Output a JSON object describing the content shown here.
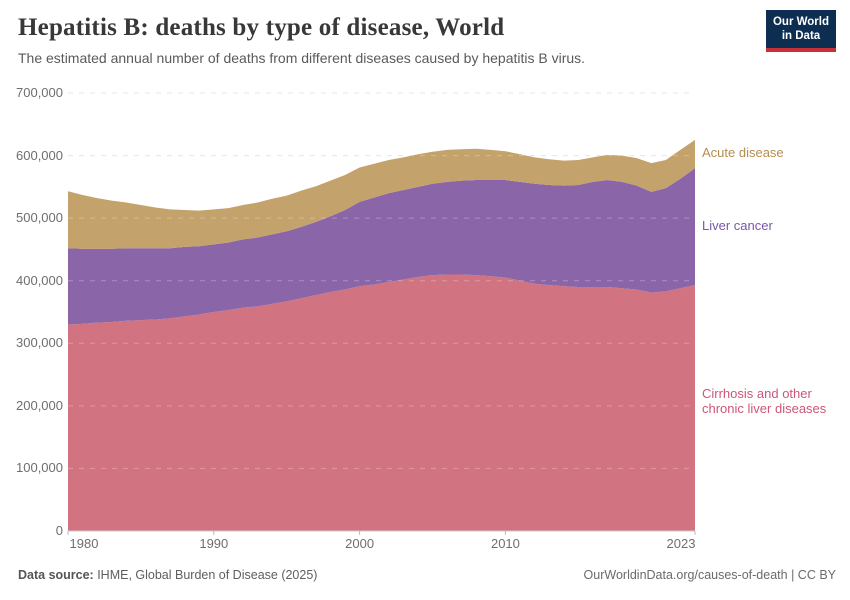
{
  "header": {
    "title": "Hepatitis B: deaths by type of disease, World",
    "subtitle": "The estimated annual number of deaths from different diseases caused by hepatitis B virus.",
    "logo": {
      "line1": "Our World",
      "line2": "in Data",
      "bg_color": "#0d2e51",
      "accent_color": "#c82f39"
    }
  },
  "chart_data": {
    "type": "area",
    "stacked": true,
    "title": "Hepatitis B: deaths by type of disease, World",
    "xlabel": "",
    "ylabel": "",
    "grid": "dashed-horizontal",
    "legend_position": "right-of-plot",
    "ylim": [
      0,
      700000
    ],
    "x": [
      1980,
      1981,
      1982,
      1983,
      1984,
      1985,
      1986,
      1987,
      1988,
      1989,
      1990,
      1991,
      1992,
      1993,
      1994,
      1995,
      1996,
      1997,
      1998,
      1999,
      2000,
      2001,
      2002,
      2003,
      2004,
      2005,
      2006,
      2007,
      2008,
      2009,
      2010,
      2011,
      2012,
      2013,
      2014,
      2015,
      2016,
      2017,
      2018,
      2019,
      2020,
      2021,
      2022,
      2023
    ],
    "x_ticks": [
      {
        "v": 1980,
        "label": "1980"
      },
      {
        "v": 1990,
        "label": "1990"
      },
      {
        "v": 2000,
        "label": "2000"
      },
      {
        "v": 2010,
        "label": "2010"
      },
      {
        "v": 2023,
        "label": "2023"
      }
    ],
    "y_ticks": [
      {
        "v": 0,
        "label": "0"
      },
      {
        "v": 100000,
        "label": "100,000"
      },
      {
        "v": 200000,
        "label": "200,000"
      },
      {
        "v": 300000,
        "label": "300,000"
      },
      {
        "v": 400000,
        "label": "400,000"
      },
      {
        "v": 500000,
        "label": "500,000"
      },
      {
        "v": 600000,
        "label": "600,000"
      },
      {
        "v": 700000,
        "label": "700,000"
      }
    ],
    "series": [
      {
        "id": "cirrhosis",
        "name": "Cirrhosis and other chronic liver diseases",
        "color": "#d17380",
        "label_color": "#ce5677",
        "values": [
          330000,
          331000,
          333000,
          334000,
          336000,
          337000,
          338000,
          340000,
          343000,
          346000,
          350000,
          353000,
          357000,
          359000,
          363000,
          367000,
          372000,
          377000,
          382000,
          386000,
          391000,
          394000,
          398000,
          402000,
          406000,
          409000,
          410000,
          410000,
          409000,
          407000,
          405000,
          400000,
          395000,
          393000,
          391000,
          390000,
          390000,
          390000,
          388000,
          386000,
          381000,
          383000,
          388000,
          393000
        ]
      },
      {
        "id": "liver-cancer",
        "name": "Liver cancer",
        "color": "#8a66a9",
        "label_color": "#7a57a5",
        "values": [
          122000,
          120000,
          118000,
          117000,
          116000,
          115000,
          114000,
          112000,
          111000,
          109000,
          108000,
          108000,
          109000,
          110000,
          111000,
          112000,
          114000,
          117000,
          121000,
          127000,
          135000,
          139000,
          142000,
          143000,
          144000,
          146000,
          148000,
          150000,
          152000,
          154000,
          156000,
          158000,
          160000,
          160000,
          161000,
          163000,
          168000,
          171000,
          170000,
          166000,
          161000,
          165000,
          175000,
          187000
        ]
      },
      {
        "id": "acute",
        "name": "Acute disease",
        "color": "#c4a26b",
        "label_color": "#b78d4f",
        "values": [
          91000,
          86000,
          81000,
          77000,
          73000,
          69000,
          65000,
          62000,
          59000,
          57000,
          56000,
          55000,
          55000,
          56000,
          57000,
          57000,
          58000,
          57000,
          57000,
          56000,
          55000,
          54000,
          53000,
          52000,
          52000,
          51000,
          51000,
          50000,
          50000,
          48000,
          46000,
          44000,
          42000,
          41000,
          40000,
          40000,
          39000,
          40000,
          42000,
          44000,
          46000,
          45000,
          46000,
          45000
        ]
      }
    ]
  },
  "footer": {
    "source_label": "Data source:",
    "source_text": " IHME, Global Burden of Disease (2025)",
    "attribution_link": "OurWorldinData.org/causes-of-death",
    "attribution_license": " | CC BY"
  }
}
